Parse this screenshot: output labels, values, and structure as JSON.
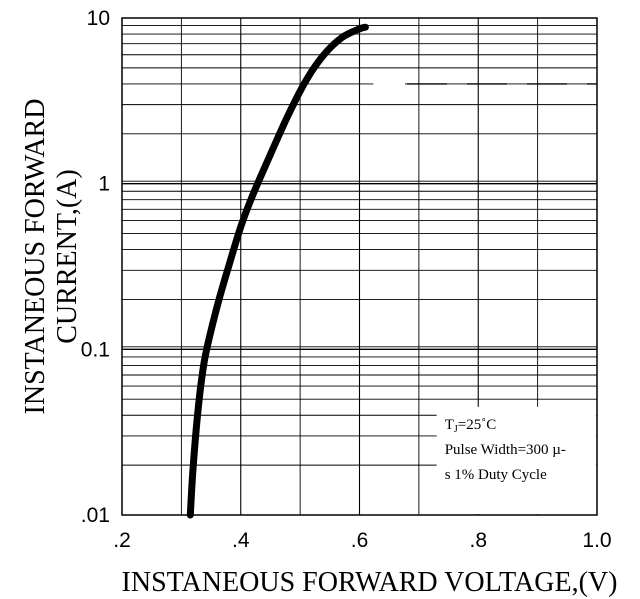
{
  "chart_data": {
    "type": "line",
    "title": "",
    "xlabel": "INSTANEOUS FORWARD VOLTAGE,(V)",
    "ylabel_lines": [
      "INSTANEOUS FORWARD",
      "CURRENT,(A)"
    ],
    "xscale": "linear",
    "yscale": "log",
    "xlim": [
      0.2,
      1.0
    ],
    "ylim": [
      0.01,
      10
    ],
    "x_ticks": [
      {
        "value": 0.2,
        "label": ".2"
      },
      {
        "value": 0.4,
        "label": ".4"
      },
      {
        "value": 0.6,
        "label": ".6"
      },
      {
        "value": 0.8,
        "label": ".8"
      },
      {
        "value": 1.0,
        "label": "1.0"
      }
    ],
    "y_ticks": [
      {
        "value": 0.01,
        "label": ".01"
      },
      {
        "value": 0.1,
        "label": "0.1"
      },
      {
        "value": 1,
        "label": "1"
      },
      {
        "value": 10,
        "label": "10"
      }
    ],
    "grid": true,
    "series": [
      {
        "x": [
          0.315,
          0.32,
          0.33,
          0.34,
          0.36,
          0.38,
          0.4,
          0.42,
          0.45,
          0.48,
          0.51,
          0.54,
          0.57,
          0.6,
          0.61
        ],
        "y": [
          0.01,
          0.02,
          0.05,
          0.09,
          0.18,
          0.32,
          0.55,
          0.85,
          1.5,
          2.6,
          4.2,
          6.0,
          7.6,
          8.6,
          8.8
        ]
      }
    ],
    "annotation_lines": [
      {
        "main": "T",
        "sub": "J",
        "rest": "=25˚C"
      },
      {
        "main": "Pulse Width=300 µ-",
        "sub": "",
        "rest": ""
      },
      {
        "main": "s 1% Duty Cycle",
        "sub": "",
        "rest": ""
      }
    ]
  }
}
